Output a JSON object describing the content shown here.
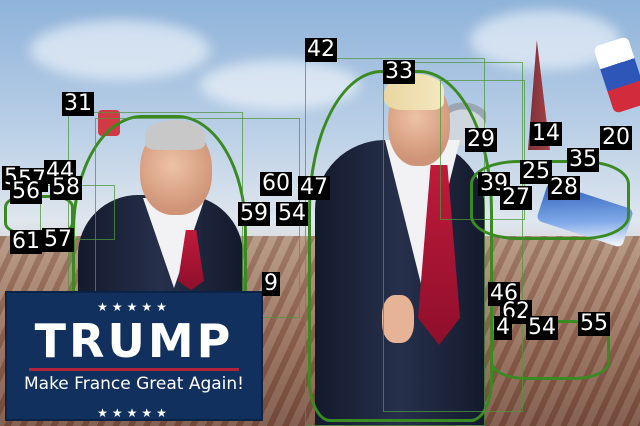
{
  "sign": {
    "stars_top": "★★★★★",
    "title": "TRUMP",
    "subtitle": "Make France Great Again!",
    "stars_bottom": "★★★★★"
  },
  "labels": [
    {
      "id": "42",
      "text": "42"
    },
    {
      "id": "33",
      "text": "33"
    },
    {
      "id": "31",
      "text": "31"
    },
    {
      "id": "29",
      "text": "29"
    },
    {
      "id": "14",
      "text": "14"
    },
    {
      "id": "20",
      "text": "20"
    },
    {
      "id": "35",
      "text": "35"
    },
    {
      "id": "25",
      "text": "25"
    },
    {
      "id": "39",
      "text": "39"
    },
    {
      "id": "27",
      "text": "27"
    },
    {
      "id": "28",
      "text": "28"
    },
    {
      "id": "60",
      "text": "60"
    },
    {
      "id": "47",
      "text": "47"
    },
    {
      "id": "59",
      "text": "59"
    },
    {
      "id": "54",
      "text": "54"
    },
    {
      "id": "5",
      "text": "5"
    },
    {
      "id": "57",
      "text": "57"
    },
    {
      "id": "56",
      "text": "56"
    },
    {
      "id": "44",
      "text": "44"
    },
    {
      "id": "58",
      "text": "58"
    },
    {
      "id": "61",
      "text": "61"
    },
    {
      "id": "57b",
      "text": "57"
    },
    {
      "id": "9",
      "text": "9"
    },
    {
      "id": "46",
      "text": "46"
    },
    {
      "id": "62",
      "text": "62"
    },
    {
      "id": "4",
      "text": "4"
    },
    {
      "id": "54b",
      "text": "54"
    },
    {
      "id": "55",
      "text": "55"
    }
  ]
}
